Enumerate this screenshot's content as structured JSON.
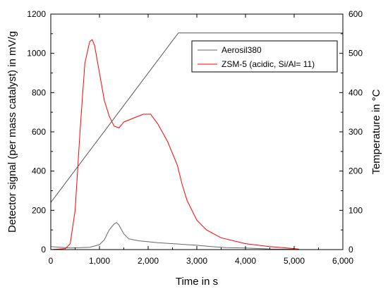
{
  "chart_data": {
    "type": "line",
    "xlabel": "Time in s",
    "ylabel": "Detector signal (per mass catalyst) in mV/g",
    "y2label": "Temperature in °C",
    "xlim": [
      0,
      6000
    ],
    "ylim": [
      0,
      1200
    ],
    "y2lim": [
      0,
      600
    ],
    "x_ticks": [
      0,
      1000,
      2000,
      3000,
      4000,
      5000,
      6000
    ],
    "x_tick_labels": [
      "0",
      "1,000",
      "2,000",
      "3,000",
      "4,000",
      "5,000",
      "6,000"
    ],
    "y_ticks": [
      0,
      200,
      400,
      600,
      800,
      1000,
      1200
    ],
    "y_tick_labels": [
      "0",
      "200",
      "400",
      "600",
      "800",
      "1000",
      "1200"
    ],
    "y2_ticks": [
      0,
      100,
      200,
      300,
      400,
      500,
      600
    ],
    "y2_tick_labels": [
      "0",
      "100",
      "200",
      "300",
      "400",
      "500",
      "600"
    ],
    "grid": false,
    "legend_position": "top-right",
    "colors": {
      "aerosil": "#666666",
      "zsm5": "#ff0000",
      "temperature": "#555555",
      "axes": "#000000"
    },
    "series": [
      {
        "name": "Aerosil380",
        "axis": "left",
        "x": [
          0,
          200,
          400,
          600,
          800,
          1000,
          1100,
          1200,
          1300,
          1350,
          1400,
          1500,
          1600,
          1800,
          2000,
          2200,
          2500,
          2800,
          3000,
          3300,
          3600,
          4000,
          4300,
          4500,
          5000
        ],
        "y": [
          15,
          12,
          8,
          10,
          12,
          25,
          50,
          100,
          130,
          138,
          125,
          80,
          55,
          45,
          40,
          35,
          30,
          25,
          22,
          15,
          10,
          8,
          5,
          3,
          2
        ]
      },
      {
        "name": "ZSM-5 (acidic, Si/Al= 11)",
        "axis": "left",
        "x": [
          0,
          300,
          400,
          500,
          600,
          700,
          800,
          850,
          900,
          1000,
          1100,
          1200,
          1300,
          1400,
          1500,
          1700,
          1900,
          2050,
          2200,
          2400,
          2600,
          2700,
          2800,
          3000,
          3200,
          3500,
          4000,
          4500,
          5000,
          5100
        ],
        "y": [
          0,
          5,
          30,
          200,
          600,
          950,
          1060,
          1070,
          1040,
          900,
          760,
          680,
          630,
          620,
          650,
          670,
          690,
          690,
          640,
          550,
          430,
          330,
          250,
          150,
          100,
          60,
          30,
          15,
          5,
          2
        ]
      },
      {
        "name": "Temperature",
        "axis": "right",
        "x": [
          0,
          2620,
          6000
        ],
        "y": [
          120,
          552,
          552
        ]
      }
    ]
  }
}
